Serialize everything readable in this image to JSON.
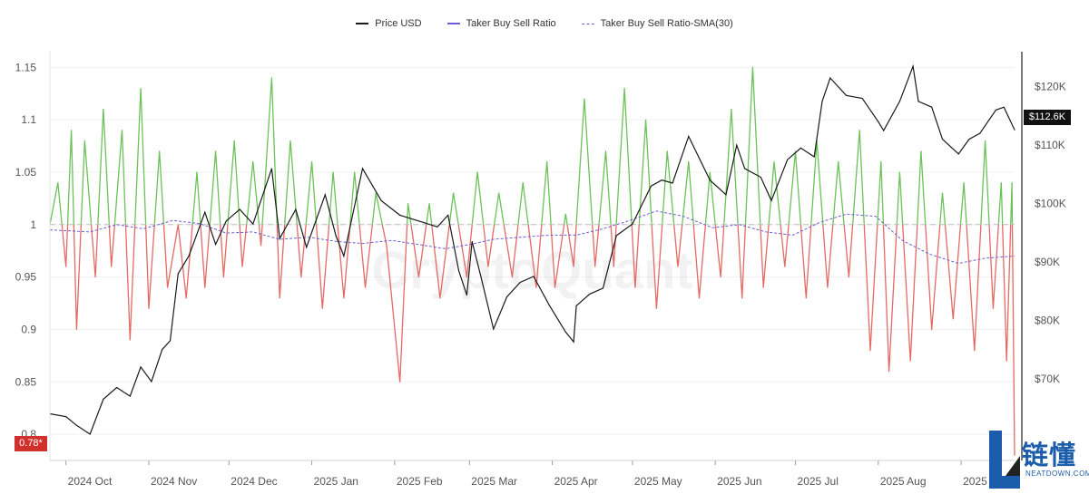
{
  "legend": {
    "price": "Price USD",
    "ratio": "Taker Buy Sell Ratio",
    "sma": "Taker Buy Sell Ratio-SMA(30)"
  },
  "badges": {
    "ratio_current": "0.78*",
    "price_current": "$112.6K"
  },
  "watermark": "CryptoQuant",
  "logo": {
    "cn": "链懂",
    "en": "NEATDOWN.COM"
  },
  "colors": {
    "price": "#1a1a1a",
    "ratio_up": "#6cc15a",
    "ratio_down": "#e46a64",
    "sma": "#6b5fd4",
    "baseline": "#bdbdbd",
    "badge_left": "#d0312d",
    "logo": "#1b5dab"
  },
  "chart_data": {
    "type": "line",
    "x_range": [
      "2024-09-25",
      "2025-09-21"
    ],
    "x_tick_labels": [
      "2024 Oct",
      "2024 Nov",
      "2024 Dec",
      "2025 Jan",
      "2025 Feb",
      "2025 Mar",
      "2025 Apr",
      "2025 May",
      "2025 Jun",
      "2025 Jul",
      "2025 Aug",
      "2025 Sep"
    ],
    "y_left": {
      "ticks": [
        0.8,
        0.85,
        0.9,
        0.95,
        1,
        1.05,
        1.1,
        1.15
      ],
      "tick_labels": [
        "0.8",
        "0.85",
        "0.9",
        "0.95",
        "1",
        "1.05",
        "1.1",
        "1.15"
      ],
      "range": [
        0.775,
        1.165
      ]
    },
    "y_right": {
      "ticks": [
        70000,
        80000,
        90000,
        100000,
        110000,
        120000
      ],
      "tick_labels": [
        "$70K",
        "$80K",
        "$90K",
        "$100K",
        "$110K",
        "$120K"
      ],
      "range": [
        56000,
        126000
      ]
    },
    "baseline": 1,
    "grid": true,
    "legend_position": "top-center",
    "series": [
      {
        "name": "Price USD",
        "axis": "right",
        "points": [
          [
            "2024-09-25",
            64000
          ],
          [
            "2024-10-01",
            63500
          ],
          [
            "2024-10-05",
            62000
          ],
          [
            "2024-10-10",
            60500
          ],
          [
            "2024-10-15",
            66500
          ],
          [
            "2024-10-20",
            68500
          ],
          [
            "2024-10-25",
            67000
          ],
          [
            "2024-10-29",
            72000
          ],
          [
            "2024-11-02",
            69500
          ],
          [
            "2024-11-06",
            75000
          ],
          [
            "2024-11-09",
            76500
          ],
          [
            "2024-11-12",
            88000
          ],
          [
            "2024-11-16",
            91000
          ],
          [
            "2024-11-22",
            98500
          ],
          [
            "2024-11-26",
            93000
          ],
          [
            "2024-11-30",
            97000
          ],
          [
            "2024-12-05",
            99000
          ],
          [
            "2024-12-10",
            96500
          ],
          [
            "2024-12-17",
            106000
          ],
          [
            "2024-12-20",
            94000
          ],
          [
            "2024-12-26",
            99000
          ],
          [
            "2024-12-30",
            92500
          ],
          [
            "2025-01-06",
            101500
          ],
          [
            "2025-01-10",
            94500
          ],
          [
            "2025-01-13",
            91000
          ],
          [
            "2025-01-20",
            106000
          ],
          [
            "2025-01-27",
            100500
          ],
          [
            "2025-02-03",
            98000
          ],
          [
            "2025-02-10",
            97000
          ],
          [
            "2025-02-17",
            96000
          ],
          [
            "2025-02-21",
            98000
          ],
          [
            "2025-02-25",
            88500
          ],
          [
            "2025-02-28",
            84300
          ],
          [
            "2025-03-02",
            93500
          ],
          [
            "2025-03-05",
            88000
          ],
          [
            "2025-03-10",
            78500
          ],
          [
            "2025-03-15",
            84000
          ],
          [
            "2025-03-20",
            86500
          ],
          [
            "2025-03-25",
            87500
          ],
          [
            "2025-03-31",
            82500
          ],
          [
            "2025-04-06",
            78000
          ],
          [
            "2025-04-09",
            76300
          ],
          [
            "2025-04-10",
            82500
          ],
          [
            "2025-04-15",
            84500
          ],
          [
            "2025-04-20",
            85500
          ],
          [
            "2025-04-25",
            94500
          ],
          [
            "2025-05-01",
            96500
          ],
          [
            "2025-05-08",
            103000
          ],
          [
            "2025-05-12",
            104000
          ],
          [
            "2025-05-16",
            103500
          ],
          [
            "2025-05-22",
            111500
          ],
          [
            "2025-05-30",
            104000
          ],
          [
            "2025-06-05",
            101500
          ],
          [
            "2025-06-09",
            110000
          ],
          [
            "2025-06-12",
            106000
          ],
          [
            "2025-06-18",
            104500
          ],
          [
            "2025-06-22",
            100500
          ],
          [
            "2025-06-28",
            107500
          ],
          [
            "2025-07-03",
            109500
          ],
          [
            "2025-07-08",
            108000
          ],
          [
            "2025-07-11",
            117500
          ],
          [
            "2025-07-14",
            121500
          ],
          [
            "2025-07-20",
            118500
          ],
          [
            "2025-07-26",
            118000
          ],
          [
            "2025-08-01",
            114000
          ],
          [
            "2025-08-03",
            112500
          ],
          [
            "2025-08-09",
            117500
          ],
          [
            "2025-08-14",
            123500
          ],
          [
            "2025-08-16",
            117500
          ],
          [
            "2025-08-21",
            116500
          ],
          [
            "2025-08-25",
            111000
          ],
          [
            "2025-08-31",
            108500
          ],
          [
            "2025-09-04",
            111000
          ],
          [
            "2025-09-08",
            112000
          ],
          [
            "2025-09-14",
            116000
          ],
          [
            "2025-09-17",
            116500
          ],
          [
            "2025-09-21",
            112600
          ]
        ]
      },
      {
        "name": "Taker Buy Sell Ratio",
        "axis": "left",
        "points": [
          [
            "2024-09-25",
            1.0
          ],
          [
            "2024-09-28",
            1.04
          ],
          [
            "2024-10-01",
            0.96
          ],
          [
            "2024-10-03",
            1.09
          ],
          [
            "2024-10-05",
            0.9
          ],
          [
            "2024-10-08",
            1.08
          ],
          [
            "2024-10-12",
            0.95
          ],
          [
            "2024-10-15",
            1.11
          ],
          [
            "2024-10-18",
            0.96
          ],
          [
            "2024-10-22",
            1.09
          ],
          [
            "2024-10-25",
            0.89
          ],
          [
            "2024-10-29",
            1.13
          ],
          [
            "2024-11-01",
            0.92
          ],
          [
            "2024-11-05",
            1.07
          ],
          [
            "2024-11-08",
            0.94
          ],
          [
            "2024-11-12",
            1.0
          ],
          [
            "2024-11-15",
            0.93
          ],
          [
            "2024-11-19",
            1.05
          ],
          [
            "2024-11-22",
            0.94
          ],
          [
            "2024-11-26",
            1.07
          ],
          [
            "2024-11-29",
            0.95
          ],
          [
            "2024-12-03",
            1.08
          ],
          [
            "2024-12-06",
            0.96
          ],
          [
            "2024-12-10",
            1.06
          ],
          [
            "2024-12-13",
            0.98
          ],
          [
            "2024-12-17",
            1.14
          ],
          [
            "2024-12-20",
            0.93
          ],
          [
            "2024-12-24",
            1.08
          ],
          [
            "2024-12-28",
            0.95
          ],
          [
            "2025-01-01",
            1.06
          ],
          [
            "2025-01-05",
            0.92
          ],
          [
            "2025-01-09",
            1.05
          ],
          [
            "2025-01-13",
            0.93
          ],
          [
            "2025-01-17",
            1.05
          ],
          [
            "2025-01-21",
            0.94
          ],
          [
            "2025-01-25",
            1.03
          ],
          [
            "2025-01-29",
            0.98
          ],
          [
            "2025-02-03",
            0.85
          ],
          [
            "2025-02-06",
            1.02
          ],
          [
            "2025-02-10",
            0.95
          ],
          [
            "2025-02-14",
            1.02
          ],
          [
            "2025-02-18",
            0.93
          ],
          [
            "2025-02-23",
            1.03
          ],
          [
            "2025-02-28",
            0.95
          ],
          [
            "2025-03-04",
            1.05
          ],
          [
            "2025-03-08",
            0.96
          ],
          [
            "2025-03-12",
            1.03
          ],
          [
            "2025-03-17",
            0.95
          ],
          [
            "2025-03-21",
            1.04
          ],
          [
            "2025-03-26",
            0.94
          ],
          [
            "2025-03-30",
            1.06
          ],
          [
            "2025-04-02",
            0.94
          ],
          [
            "2025-04-06",
            1.01
          ],
          [
            "2025-04-09",
            0.96
          ],
          [
            "2025-04-13",
            1.12
          ],
          [
            "2025-04-17",
            0.96
          ],
          [
            "2025-04-21",
            1.07
          ],
          [
            "2025-04-24",
            0.96
          ],
          [
            "2025-04-28",
            1.13
          ],
          [
            "2025-05-02",
            0.94
          ],
          [
            "2025-05-06",
            1.1
          ],
          [
            "2025-05-10",
            0.92
          ],
          [
            "2025-05-14",
            1.07
          ],
          [
            "2025-05-18",
            0.96
          ],
          [
            "2025-05-22",
            1.06
          ],
          [
            "2025-05-26",
            0.93
          ],
          [
            "2025-05-30",
            1.05
          ],
          [
            "2025-06-03",
            0.95
          ],
          [
            "2025-06-07",
            1.11
          ],
          [
            "2025-06-11",
            0.93
          ],
          [
            "2025-06-15",
            1.15
          ],
          [
            "2025-06-19",
            0.94
          ],
          [
            "2025-06-23",
            1.06
          ],
          [
            "2025-06-27",
            0.96
          ],
          [
            "2025-07-01",
            1.07
          ],
          [
            "2025-07-05",
            0.93
          ],
          [
            "2025-07-09",
            1.08
          ],
          [
            "2025-07-13",
            0.94
          ],
          [
            "2025-07-17",
            1.06
          ],
          [
            "2025-07-21",
            0.95
          ],
          [
            "2025-07-25",
            1.09
          ],
          [
            "2025-07-29",
            0.88
          ],
          [
            "2025-08-02",
            1.06
          ],
          [
            "2025-08-05",
            0.86
          ],
          [
            "2025-08-09",
            1.05
          ],
          [
            "2025-08-13",
            0.87
          ],
          [
            "2025-08-17",
            1.07
          ],
          [
            "2025-08-21",
            0.9
          ],
          [
            "2025-08-25",
            1.03
          ],
          [
            "2025-08-29",
            0.91
          ],
          [
            "2025-09-02",
            1.04
          ],
          [
            "2025-09-06",
            0.88
          ],
          [
            "2025-09-10",
            1.08
          ],
          [
            "2025-09-13",
            0.92
          ],
          [
            "2025-09-16",
            1.04
          ],
          [
            "2025-09-18",
            0.87
          ],
          [
            "2025-09-20",
            1.04
          ],
          [
            "2025-09-21",
            0.78
          ]
        ]
      },
      {
        "name": "Taker Buy Sell Ratio-SMA(30)",
        "axis": "left",
        "points": [
          [
            "2024-09-25",
            0.995
          ],
          [
            "2024-10-10",
            0.993
          ],
          [
            "2024-10-20",
            1.0
          ],
          [
            "2024-10-30",
            0.996
          ],
          [
            "2024-11-10",
            1.004
          ],
          [
            "2024-11-20",
            1.001
          ],
          [
            "2024-11-30",
            0.992
          ],
          [
            "2024-12-10",
            0.993
          ],
          [
            "2024-12-20",
            0.986
          ],
          [
            "2024-12-31",
            0.988
          ],
          [
            "2025-01-10",
            0.984
          ],
          [
            "2025-01-20",
            0.982
          ],
          [
            "2025-01-31",
            0.985
          ],
          [
            "2025-02-10",
            0.981
          ],
          [
            "2025-02-20",
            0.977
          ],
          [
            "2025-03-01",
            0.981
          ],
          [
            "2025-03-10",
            0.986
          ],
          [
            "2025-03-20",
            0.988
          ],
          [
            "2025-03-31",
            0.99
          ],
          [
            "2025-04-10",
            0.99
          ],
          [
            "2025-04-20",
            0.996
          ],
          [
            "2025-04-30",
            1.004
          ],
          [
            "2025-05-10",
            1.013
          ],
          [
            "2025-05-20",
            1.008
          ],
          [
            "2025-05-31",
            0.997
          ],
          [
            "2025-06-10",
            1.0
          ],
          [
            "2025-06-20",
            0.993
          ],
          [
            "2025-06-30",
            0.99
          ],
          [
            "2025-07-10",
            1.002
          ],
          [
            "2025-07-20",
            1.01
          ],
          [
            "2025-07-31",
            1.008
          ],
          [
            "2025-08-10",
            0.985
          ],
          [
            "2025-08-20",
            0.972
          ],
          [
            "2025-08-31",
            0.963
          ],
          [
            "2025-09-10",
            0.968
          ],
          [
            "2025-09-21",
            0.97
          ]
        ]
      }
    ]
  }
}
